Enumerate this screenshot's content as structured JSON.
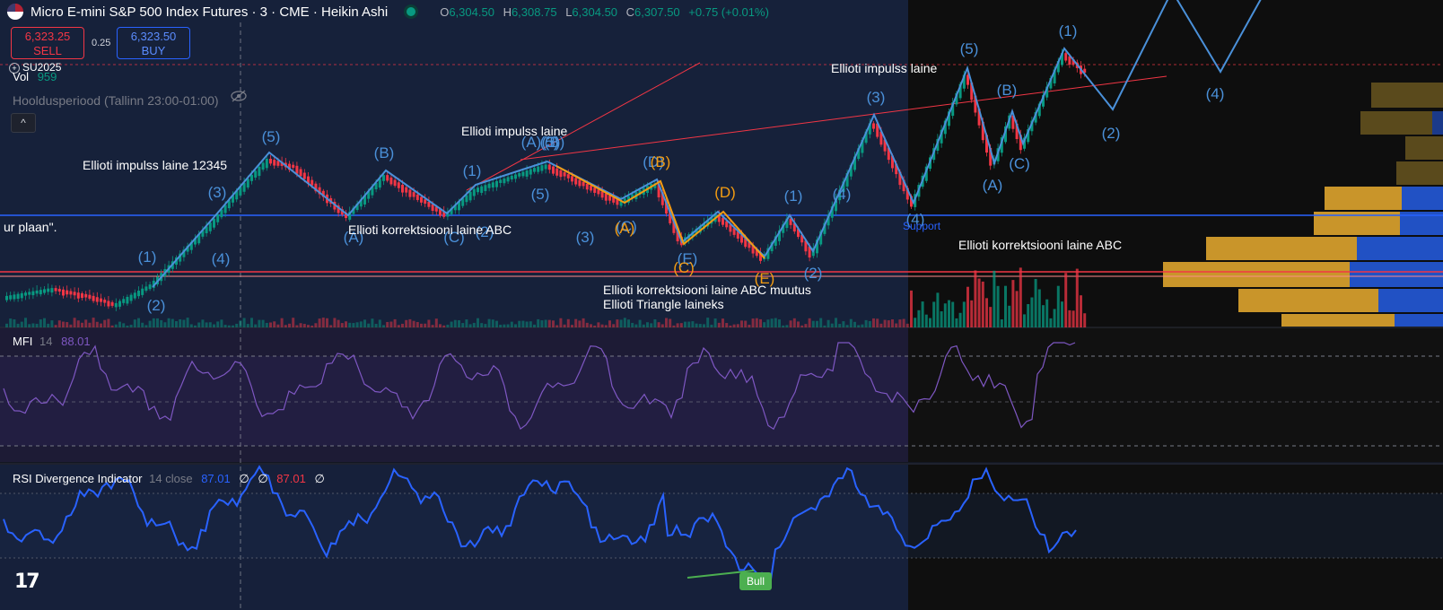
{
  "header": {
    "symbol_title": "Micro E-mini S&P 500 Index Futures · 3 · CME · Heikin Ashi",
    "ohlc": {
      "o_label": "O",
      "o": "6,304.50",
      "h_label": "H",
      "h": "6,308.75",
      "l_label": "L",
      "l": "6,304.50",
      "c_label": "C",
      "c": "6,307.50",
      "change": "+0.75 (+0.01%)"
    }
  },
  "trade": {
    "sell_price": "6,323.25",
    "sell_label": "SELL",
    "spread": "0.25",
    "buy_price": "6,323.50",
    "buy_label": "BUY"
  },
  "legend": {
    "contract": "SU2025",
    "vol_label": "Vol",
    "vol_value": "959",
    "session": "Hooldusperiood (Tallinn 23:00-01:00)",
    "collapse_icon": "chevron-up-icon"
  },
  "mfi": {
    "label": "MFI",
    "length": "14",
    "value": "88.01"
  },
  "rsi": {
    "label": "RSI Divergence Indicator",
    "params": "14 close",
    "value1": "87.01",
    "ph1": "∅",
    "ph2": "∅",
    "value2": "87.01",
    "ph3": "∅"
  },
  "annotations": {
    "impulse_12345": "Ellioti impulss laine 12345",
    "impulse_mid": "Ellioti impulss laine",
    "impulse_right": "Ellioti impulss laine",
    "corr_abc_left": "Ellioti korrektsiooni laine ABC",
    "corr_abc_right": "Ellioti korrektsiooni laine ABC",
    "corr_abc_change": "Ellioti korrektsiooni laine ABC muutus",
    "triangle": "Ellioti Triangle laineks",
    "cut_text": "ur plaan\".",
    "support": "Support",
    "bull": "Bull"
  },
  "colors": {
    "background": "#131722",
    "up": "#089981",
    "down": "#f23645",
    "wave_blue": "#4a90d9",
    "wave_orange": "#f39c12",
    "mfi": "#7e57c2",
    "rsi": "#2962ff",
    "support": "#2962ff",
    "bull": "#4caf50"
  },
  "wave_labels_blue": [
    "(1)",
    "(2)",
    "(3)",
    "(4)",
    "(5)",
    "(A)",
    "(B)",
    "(C)",
    "(1)",
    "(2)",
    "(3)",
    "(4)",
    "(5)",
    "(A)",
    "(B)",
    "(C)",
    "(D)",
    "(E)",
    "(1)",
    "(2)",
    "(3)",
    "(4)",
    "(5)",
    "(A)",
    "(B)",
    "(C)",
    "(1)",
    "(2)",
    "(4)",
    "(3)",
    "(5)"
  ],
  "wave_labels_orange": [
    "(A)",
    "(B)",
    "(C)",
    "(D)",
    "(E)"
  ],
  "branding": "17"
}
